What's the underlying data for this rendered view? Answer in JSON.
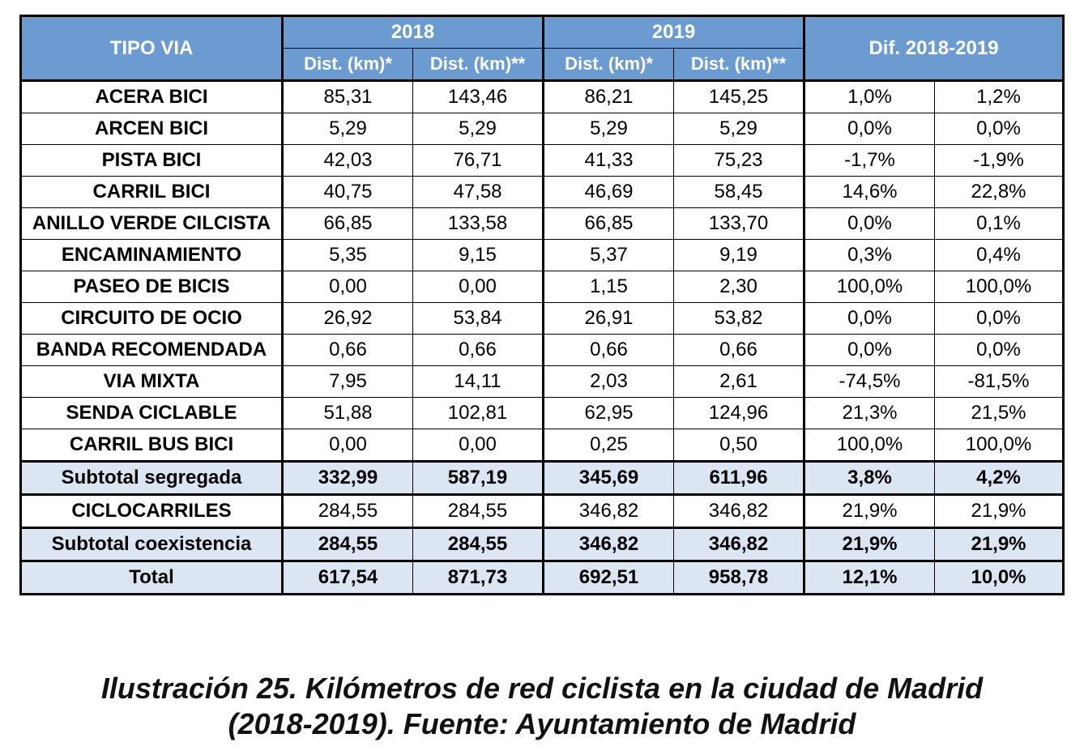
{
  "header": {
    "tipo_via": "TIPO VIA",
    "year_2018": "2018",
    "year_2019": "2019",
    "diff": "Dif. 2018-2019",
    "dist_star": "Dist. (km)*",
    "dist_double_star": "Dist. (km)**"
  },
  "rows": [
    {
      "label": "ACERA BICI",
      "v1": "85,31",
      "v2": "143,46",
      "v3": "86,21",
      "v4": "145,25",
      "d1": "1,0%",
      "d2": "1,2%"
    },
    {
      "label": "ARCEN BICI",
      "v1": "5,29",
      "v2": "5,29",
      "v3": "5,29",
      "v4": "5,29",
      "d1": "0,0%",
      "d2": "0,0%"
    },
    {
      "label": "PISTA BICI",
      "v1": "42,03",
      "v2": "76,71",
      "v3": "41,33",
      "v4": "75,23",
      "d1": "-1,7%",
      "d2": "-1,9%"
    },
    {
      "label": "CARRIL BICI",
      "v1": "40,75",
      "v2": "47,58",
      "v3": "46,69",
      "v4": "58,45",
      "d1": "14,6%",
      "d2": "22,8%"
    },
    {
      "label": "ANILLO VERDE CILCISTA",
      "v1": "66,85",
      "v2": "133,58",
      "v3": "66,85",
      "v4": "133,70",
      "d1": "0,0%",
      "d2": "0,1%"
    },
    {
      "label": "ENCAMINAMIENTO",
      "v1": "5,35",
      "v2": "9,15",
      "v3": "5,37",
      "v4": "9,19",
      "d1": "0,3%",
      "d2": "0,4%"
    },
    {
      "label": "PASEO DE BICIS",
      "v1": "0,00",
      "v2": "0,00",
      "v3": "1,15",
      "v4": "2,30",
      "d1": "100,0%",
      "d2": "100,0%"
    },
    {
      "label": "CIRCUITO DE OCIO",
      "v1": "26,92",
      "v2": "53,84",
      "v3": "26,91",
      "v4": "53,82",
      "d1": "0,0%",
      "d2": "0,0%"
    },
    {
      "label": "BANDA RECOMENDADA",
      "v1": "0,66",
      "v2": "0,66",
      "v3": "0,66",
      "v4": "0,66",
      "d1": "0,0%",
      "d2": "0,0%"
    },
    {
      "label": "VIA MIXTA",
      "v1": "7,95",
      "v2": "14,11",
      "v3": "2,03",
      "v4": "2,61",
      "d1": "-74,5%",
      "d2": "-81,5%"
    },
    {
      "label": "SENDA CICLABLE",
      "v1": "51,88",
      "v2": "102,81",
      "v3": "62,95",
      "v4": "124,96",
      "d1": "21,3%",
      "d2": "21,5%"
    },
    {
      "label": "CARRIL BUS BICI",
      "v1": "0,00",
      "v2": "0,00",
      "v3": "0,25",
      "v4": "0,50",
      "d1": "100,0%",
      "d2": "100,0%"
    }
  ],
  "subtotal_segregada": {
    "label": "Subtotal segregada",
    "v1": "332,99",
    "v2": "587,19",
    "v3": "345,69",
    "v4": "611,96",
    "d1": "3,8%",
    "d2": "4,2%"
  },
  "ciclocarriles": {
    "label": "CICLOCARRILES",
    "v1": "284,55",
    "v2": "284,55",
    "v3": "346,82",
    "v4": "346,82",
    "d1": "21,9%",
    "d2": "21,9%"
  },
  "subtotal_coexistencia": {
    "label": "Subtotal coexistencia",
    "v1": "284,55",
    "v2": "284,55",
    "v3": "346,82",
    "v4": "346,82",
    "d1": "21,9%",
    "d2": "21,9%"
  },
  "total": {
    "label": "Total",
    "v1": "617,54",
    "v2": "871,73",
    "v3": "692,51",
    "v4": "958,78",
    "d1": "12,1%",
    "d2": "10,0%"
  },
  "caption": {
    "line1": "Ilustración 25. Kilómetros de red ciclista en la ciudad de Madrid",
    "line2": "(2018-2019). Fuente: Ayuntamiento de Madrid"
  },
  "colors": {
    "header_bg": "#6c9bd1",
    "header_text": "#ffffff",
    "subtotal_bg": "#dce6f2"
  }
}
